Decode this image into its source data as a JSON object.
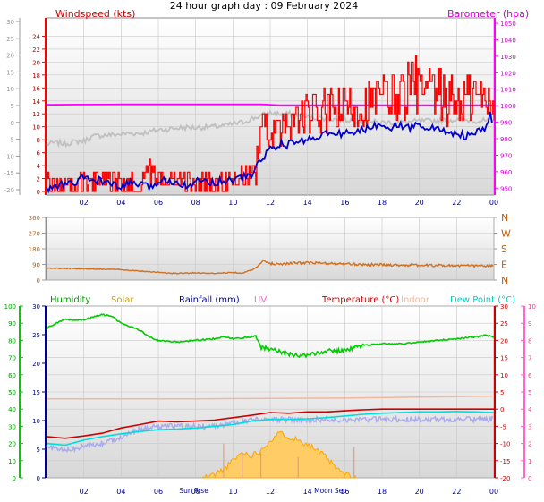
{
  "page_title": "24 hour graph day : 09 February 2024",
  "colors": {
    "wind_gust": "#ff0000",
    "wind_avg": "#0000cc",
    "barometer": "#ff00ff",
    "temp_outdoor": "#c0c0c0",
    "direction": "#d07020",
    "humidity": "#00cc00",
    "solar": "#ffa500",
    "rainfall": "#000099",
    "uv": "#ff66cc",
    "temperature": "#cc0000",
    "indoor": "#f0b8a0",
    "dew_point": "#00dddd",
    "windchill": "#aaaaee",
    "left_axis_speed": "#ff0000",
    "left_axis_temp": "#999999",
    "right_axis_baro": "#ff00ff"
  },
  "chart_data": [
    {
      "type": "line",
      "panel": "wind-barometer",
      "legend_left": "Windspeed (kts)",
      "legend_right": "Barometer (hpa)",
      "x_ticks": [
        "02",
        "04",
        "06",
        "08",
        "10",
        "12",
        "14",
        "16",
        "18",
        "20",
        "22",
        "00"
      ],
      "speed_ticks": [
        "0",
        "2",
        "4",
        "6",
        "8",
        "10",
        "12",
        "14",
        "16",
        "18",
        "20",
        "22",
        "24"
      ],
      "speed_ylim": [
        0,
        26
      ],
      "temp_ticks": [
        "-20",
        "-15",
        "-10",
        "-5",
        "0",
        "5",
        "10",
        "15",
        "20",
        "25",
        "30"
      ],
      "temp_ylim": [
        -20,
        30
      ],
      "baro_ticks": [
        "950",
        "960",
        "970",
        "980",
        "990",
        "1000",
        "1010",
        "1020",
        "1030",
        "1040",
        "1050"
      ],
      "baro_ylim": [
        948,
        1050
      ],
      "barometer_series": [
        [
          0,
          1000.5
        ],
        [
          2,
          1000.7
        ],
        [
          4,
          1000.8
        ],
        [
          6,
          1000.8
        ],
        [
          8,
          1000.8
        ],
        [
          10,
          1000.8
        ],
        [
          11.5,
          1000.8
        ],
        [
          12,
          1000.6
        ],
        [
          12.5,
          1000.3
        ],
        [
          14,
          1000.3
        ],
        [
          16,
          1000.3
        ],
        [
          18,
          1000.3
        ],
        [
          20,
          1000.3
        ],
        [
          22,
          1000.3
        ],
        [
          24,
          1000.3
        ]
      ],
      "temperature_gray_series": [
        [
          0,
          -6.5
        ],
        [
          0.5,
          -6
        ],
        [
          1,
          -6.3
        ],
        [
          1.5,
          -5.8
        ],
        [
          2,
          -5.5
        ],
        [
          2.5,
          -4.2
        ],
        [
          3,
          -3.8
        ],
        [
          3.5,
          -3.7
        ],
        [
          4,
          -3.5
        ],
        [
          4.5,
          -3.2
        ],
        [
          5,
          -3.3
        ],
        [
          5.5,
          -2.8
        ],
        [
          6,
          -2.2
        ],
        [
          6.5,
          -2.0
        ],
        [
          7,
          -1.7
        ],
        [
          7.5,
          -1.5
        ],
        [
          8,
          -1.6
        ],
        [
          8.5,
          -1.4
        ],
        [
          9,
          -1.3
        ],
        [
          9.5,
          -1
        ],
        [
          10,
          -0.5
        ],
        [
          10.5,
          0
        ],
        [
          11,
          1.0
        ],
        [
          11.5,
          2.0
        ],
        [
          12,
          2.8
        ],
        [
          12.5,
          2.5
        ],
        [
          13,
          2.5
        ],
        [
          13.5,
          2
        ],
        [
          14,
          1.5
        ],
        [
          15,
          1.2
        ],
        [
          16,
          0.8
        ],
        [
          17,
          0.3
        ],
        [
          18,
          0.0
        ],
        [
          19,
          0.0
        ],
        [
          20,
          0.3
        ],
        [
          21,
          0.5
        ],
        [
          22,
          0.8
        ],
        [
          23,
          0.5
        ],
        [
          24,
          0.3
        ]
      ],
      "avg_speed_series": [
        [
          0,
          0.2
        ],
        [
          0.5,
          0.8
        ],
        [
          1,
          1.2
        ],
        [
          1.5,
          1.2
        ],
        [
          2,
          2.2
        ],
        [
          2.5,
          1.7
        ],
        [
          3,
          1.7
        ],
        [
          3.5,
          1.0
        ],
        [
          4,
          0.5
        ],
        [
          4.5,
          1.5
        ],
        [
          5,
          1.0
        ],
        [
          5.5,
          0.6
        ],
        [
          6,
          1.5
        ],
        [
          6.5,
          1.8
        ],
        [
          7,
          1.5
        ],
        [
          7.5,
          1.0
        ],
        [
          8,
          1.4
        ],
        [
          8.5,
          1.8
        ],
        [
          9,
          1.4
        ],
        [
          9.5,
          1.7
        ],
        [
          10,
          1.8
        ],
        [
          10.5,
          2.2
        ],
        [
          11,
          2.5
        ],
        [
          11.5,
          5.0
        ],
        [
          12,
          6.5
        ],
        [
          12.5,
          7.3
        ],
        [
          13,
          7.2
        ],
        [
          13.5,
          7.8
        ],
        [
          14,
          8.0
        ],
        [
          14.5,
          8.5
        ],
        [
          15,
          9.0
        ],
        [
          15.5,
          8.7
        ],
        [
          16,
          9.2
        ],
        [
          16.5,
          8.9
        ],
        [
          17,
          9.6
        ],
        [
          17.5,
          10.0
        ],
        [
          18,
          10.5
        ],
        [
          18.5,
          10.0
        ],
        [
          19,
          10.2
        ],
        [
          19.5,
          9.8
        ],
        [
          20,
          10.5
        ],
        [
          20.5,
          9.8
        ],
        [
          21,
          9.6
        ],
        [
          21.5,
          9.2
        ],
        [
          22,
          9.0
        ],
        [
          22.5,
          8.5
        ],
        [
          23,
          9.0
        ],
        [
          23.5,
          9.5
        ],
        [
          23.8,
          12.0
        ],
        [
          24,
          9.5
        ]
      ],
      "gust_envelope": [
        [
          0,
          3.0
        ],
        [
          1,
          2.5
        ],
        [
          2,
          3.0
        ],
        [
          3,
          3.5
        ],
        [
          4,
          3.0
        ],
        [
          5,
          3.0
        ],
        [
          5.5,
          5.0
        ],
        [
          6,
          3.5
        ],
        [
          7,
          3.5
        ],
        [
          8,
          3.0
        ],
        [
          9,
          3.0
        ],
        [
          10,
          3.5
        ],
        [
          11,
          4.5
        ],
        [
          11.5,
          12.5
        ],
        [
          12,
          12.0
        ],
        [
          12.5,
          12.0
        ],
        [
          13,
          13.5
        ],
        [
          14,
          15.0
        ],
        [
          15,
          16.0
        ],
        [
          16,
          16.5
        ],
        [
          17,
          17.0
        ],
        [
          18,
          18.5
        ],
        [
          19,
          19.5
        ],
        [
          19.8,
          21.5
        ],
        [
          20,
          19.5
        ],
        [
          21,
          19.0
        ],
        [
          22,
          18.0
        ],
        [
          23,
          19.0
        ],
        [
          24,
          18.0
        ]
      ]
    },
    {
      "type": "line",
      "panel": "wind-direction",
      "left_ticks": [
        "0",
        "90",
        "180",
        "270",
        "360"
      ],
      "ylim": [
        0,
        360
      ],
      "right_labels": [
        "N",
        "W",
        "S",
        "E",
        "N"
      ],
      "x_ticks": [
        "02",
        "04",
        "06",
        "08",
        "10",
        "12",
        "14",
        "16",
        "18",
        "20",
        "22",
        "00"
      ],
      "series": [
        [
          0,
          68
        ],
        [
          2,
          65
        ],
        [
          4,
          60
        ],
        [
          5,
          52
        ],
        [
          6,
          45
        ],
        [
          6.5,
          40
        ],
        [
          7,
          38
        ],
        [
          8,
          42
        ],
        [
          9,
          38
        ],
        [
          10,
          44
        ],
        [
          10.5,
          40
        ],
        [
          11,
          58
        ],
        [
          11.3,
          75
        ],
        [
          11.6,
          110
        ],
        [
          12,
          95
        ],
        [
          12.5,
          92
        ],
        [
          13,
          96
        ],
        [
          14,
          100
        ],
        [
          15,
          96
        ],
        [
          16,
          92
        ],
        [
          17,
          90
        ],
        [
          18,
          88
        ],
        [
          19,
          86
        ],
        [
          20,
          85
        ],
        [
          21,
          84
        ],
        [
          22,
          83
        ],
        [
          23,
          82
        ],
        [
          24,
          80
        ]
      ]
    },
    {
      "type": "line",
      "panel": "temperature-humidity-solar",
      "legend": [
        "Humidity",
        "Solar",
        "Rainfall (mm)",
        "UV",
        "Temperature (°C)",
        "Indoor",
        "Dew Point (°C)"
      ],
      "humidity_ticks": [
        "0",
        "10",
        "20",
        "30",
        "40",
        "50",
        "60",
        "70",
        "80",
        "90",
        "100"
      ],
      "humidity_ylim": [
        0,
        100
      ],
      "rain_ticks": [
        "0",
        "5",
        "10",
        "15",
        "20",
        "25",
        "30"
      ],
      "rain_ylim": [
        0,
        30
      ],
      "temp_ticks": [
        "-20",
        "-15",
        "-10",
        "-5",
        "0",
        "5",
        "10",
        "15",
        "20",
        "25",
        "30"
      ],
      "temp_ylim": [
        -20,
        30
      ],
      "uv_ticks": [
        "0",
        "1",
        "2",
        "3",
        "4",
        "5",
        "6",
        "7",
        "8",
        "9",
        "10"
      ],
      "uv_ylim": [
        0,
        10
      ],
      "x_labels": [
        "02",
        "04",
        "06",
        "08",
        "10",
        "12",
        "14",
        "16",
        "18",
        "20",
        "22",
        "00"
      ],
      "sun_rise_label": "Sun Rise",
      "moon_set_label": "Moon Set",
      "humidity_series": [
        [
          0,
          87
        ],
        [
          0.5,
          90
        ],
        [
          1,
          92
        ],
        [
          2,
          92
        ],
        [
          3,
          95
        ],
        [
          3.5,
          94
        ],
        [
          4,
          90
        ],
        [
          5,
          86
        ],
        [
          5.5,
          82
        ],
        [
          6,
          80
        ],
        [
          7,
          79
        ],
        [
          8,
          80
        ],
        [
          9,
          81
        ],
        [
          9.5,
          82
        ],
        [
          10,
          81
        ],
        [
          11,
          82
        ],
        [
          11.2,
          83
        ],
        [
          11.5,
          76
        ],
        [
          12,
          75
        ],
        [
          13,
          72
        ],
        [
          14,
          71
        ],
        [
          15,
          74
        ],
        [
          16,
          74
        ],
        [
          17,
          77
        ],
        [
          18,
          78
        ],
        [
          19,
          78
        ],
        [
          20,
          79
        ],
        [
          21,
          80
        ],
        [
          22,
          81
        ],
        [
          23,
          82
        ],
        [
          23.5,
          83
        ],
        [
          24,
          82
        ]
      ],
      "temperature_series": [
        [
          0,
          -8
        ],
        [
          1,
          -8.5
        ],
        [
          2,
          -7.8
        ],
        [
          3,
          -7.0
        ],
        [
          4,
          -5.5
        ],
        [
          5,
          -4.5
        ],
        [
          6,
          -3.5
        ],
        [
          7,
          -3.7
        ],
        [
          8,
          -3.5
        ],
        [
          9,
          -3.2
        ],
        [
          10,
          -2.5
        ],
        [
          11,
          -1.8
        ],
        [
          12,
          -1.0
        ],
        [
          13,
          -1.2
        ],
        [
          14,
          -0.8
        ],
        [
          15,
          -0.8
        ],
        [
          16,
          -0.5
        ],
        [
          17,
          -0.2
        ],
        [
          18,
          0.0
        ],
        [
          19,
          0.0
        ],
        [
          20,
          0.0
        ],
        [
          21,
          0.0
        ],
        [
          22,
          0.0
        ],
        [
          23,
          0.0
        ],
        [
          24,
          0.0
        ]
      ],
      "indoor_series": [
        [
          0,
          3.0
        ],
        [
          4,
          3.0
        ],
        [
          8,
          3.0
        ],
        [
          12,
          3.1
        ],
        [
          16,
          3.2
        ],
        [
          20,
          3.5
        ],
        [
          24,
          3.8
        ]
      ],
      "dew_point_series": [
        [
          0,
          -10
        ],
        [
          1,
          -10.5
        ],
        [
          2,
          -9.0
        ],
        [
          3,
          -8.0
        ],
        [
          4,
          -7.2
        ],
        [
          5,
          -6.5
        ],
        [
          6,
          -6.0
        ],
        [
          7,
          -5.8
        ],
        [
          8,
          -5.5
        ],
        [
          9,
          -5.0
        ],
        [
          10,
          -4.5
        ],
        [
          11,
          -3.5
        ],
        [
          12,
          -3.0
        ],
        [
          13,
          -3.0
        ],
        [
          14,
          -2.8
        ],
        [
          15,
          -2.5
        ],
        [
          16,
          -2.0
        ],
        [
          17,
          -1.5
        ],
        [
          18,
          -1.2
        ],
        [
          19,
          -1.0
        ],
        [
          20,
          -0.8
        ],
        [
          21,
          -0.8
        ],
        [
          22,
          -0.7
        ],
        [
          23,
          -0.8
        ],
        [
          24,
          -1.0
        ]
      ],
      "windchill_series": [
        [
          0,
          -11
        ],
        [
          1,
          -12
        ],
        [
          2,
          -11
        ],
        [
          3,
          -10
        ],
        [
          4,
          -8
        ],
        [
          5,
          -6
        ],
        [
          6,
          -5
        ],
        [
          7,
          -5
        ],
        [
          8,
          -5
        ],
        [
          9,
          -5
        ],
        [
          10,
          -4
        ],
        [
          11,
          -3
        ],
        [
          12,
          -3
        ],
        [
          13,
          -3
        ],
        [
          14,
          -3
        ],
        [
          15,
          -3
        ],
        [
          16,
          -3
        ],
        [
          17,
          -3
        ],
        [
          18,
          -3
        ],
        [
          19,
          -3
        ],
        [
          20,
          -3
        ],
        [
          21,
          -3
        ],
        [
          22,
          -3
        ],
        [
          23,
          -3
        ],
        [
          24,
          -3
        ]
      ],
      "solar_series": [
        [
          8.4,
          0
        ],
        [
          9,
          0.2
        ],
        [
          9.5,
          0.5
        ],
        [
          10,
          1.0
        ],
        [
          10.5,
          1.5
        ],
        [
          11,
          1.3
        ],
        [
          11.5,
          1.6
        ],
        [
          12,
          2.2
        ],
        [
          12.5,
          2.6
        ],
        [
          13,
          2.4
        ],
        [
          13.5,
          2.2
        ],
        [
          14,
          2.0
        ],
        [
          14.5,
          1.6
        ],
        [
          15,
          1.2
        ],
        [
          15.5,
          0.6
        ],
        [
          16,
          0.2
        ],
        [
          16.5,
          0
        ]
      ],
      "uv_markers": [
        [
          9.5,
          2
        ],
        [
          10.5,
          1.5
        ],
        [
          11.5,
          1.5
        ],
        [
          13.5,
          1.2
        ],
        [
          16.5,
          1.8
        ]
      ]
    }
  ]
}
